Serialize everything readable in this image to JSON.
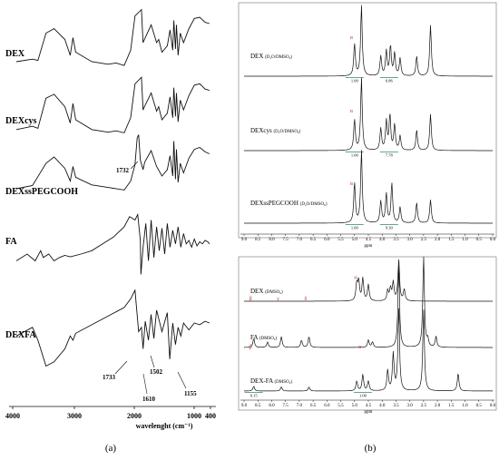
{
  "panels": {
    "a": "(a)",
    "b": "(b)"
  },
  "chart_data": [
    {
      "type": "line",
      "panel": "(a)",
      "xlabel": "wavelenght (cm⁻¹)",
      "xlim": [
        4000,
        400
      ],
      "x_ticks": [
        "4000",
        "3000",
        "2000",
        "1000",
        "400"
      ],
      "series": [
        {
          "name": "DEX",
          "x": [
            4000,
            3700,
            3600,
            3450,
            3300,
            3100,
            3000,
            2950,
            2900,
            2600,
            2300,
            2150,
            2000,
            1880,
            1800,
            1680,
            1650,
            1620,
            1500,
            1400,
            1360,
            1300,
            1200,
            1150,
            1100,
            1080,
            1050,
            1030,
            1000,
            960,
            900,
            800,
            700,
            600,
            500,
            420
          ],
          "y": [
            0.1,
            0.14,
            0.12,
            0.55,
            0.62,
            0.45,
            0.2,
            0.48,
            0.25,
            0.1,
            0.06,
            0.08,
            0.04,
            0.28,
            0.82,
            0.92,
            0.4,
            0.46,
            0.68,
            0.4,
            0.45,
            0.25,
            0.35,
            0.6,
            0.28,
            0.75,
            0.3,
            0.68,
            0.2,
            0.55,
            0.4,
            0.62,
            0.78,
            0.8,
            0.72,
            0.7
          ]
        },
        {
          "name": "DEXcys",
          "x": [
            4000,
            3700,
            3600,
            3450,
            3300,
            3100,
            3000,
            2950,
            2900,
            2600,
            2300,
            2150,
            2000,
            1880,
            1800,
            1680,
            1650,
            1620,
            1500,
            1400,
            1360,
            1300,
            1200,
            1150,
            1100,
            1080,
            1050,
            1030,
            1000,
            960,
            900,
            800,
            700,
            600,
            500,
            420
          ],
          "y": [
            0.1,
            0.15,
            0.12,
            0.58,
            0.64,
            0.45,
            0.2,
            0.5,
            0.25,
            0.1,
            0.06,
            0.08,
            0.05,
            0.28,
            0.8,
            0.9,
            0.4,
            0.46,
            0.66,
            0.38,
            0.45,
            0.25,
            0.35,
            0.6,
            0.28,
            0.74,
            0.3,
            0.66,
            0.22,
            0.55,
            0.4,
            0.62,
            0.78,
            0.8,
            0.72,
            0.7
          ]
        },
        {
          "name": "DEXssPEGCOOH",
          "x": [
            4000,
            3700,
            3450,
            3300,
            3100,
            3000,
            2950,
            2900,
            2600,
            2300,
            2000,
            1880,
            1800,
            1760,
            1732,
            1700,
            1650,
            1620,
            1500,
            1400,
            1300,
            1200,
            1150,
            1100,
            1080,
            1050,
            1030,
            1000,
            960,
            900,
            800,
            700,
            600,
            500,
            420
          ],
          "y": [
            0.1,
            0.15,
            0.5,
            0.6,
            0.42,
            0.22,
            0.45,
            0.28,
            0.16,
            0.12,
            0.08,
            0.22,
            0.48,
            0.9,
            0.95,
            0.55,
            0.4,
            0.52,
            0.7,
            0.45,
            0.3,
            0.4,
            0.62,
            0.3,
            0.85,
            0.25,
            0.72,
            0.2,
            0.5,
            0.35,
            0.58,
            0.72,
            0.75,
            0.68,
            0.65
          ]
        },
        {
          "name": "FA",
          "x": [
            4000,
            3800,
            3650,
            3550,
            3500,
            3400,
            3300,
            3200,
            3100,
            3000,
            2800,
            2600,
            2400,
            2200,
            2000,
            1900,
            1800,
            1750,
            1700,
            1690,
            1650,
            1600,
            1550,
            1500,
            1450,
            1400,
            1350,
            1300,
            1250,
            1200,
            1150,
            1100,
            1050,
            1000,
            950,
            900,
            850,
            800,
            750,
            700,
            650,
            600,
            550,
            500,
            450,
            420
          ],
          "y": [
            0.3,
            0.4,
            0.3,
            0.45,
            0.35,
            0.4,
            0.3,
            0.35,
            0.38,
            0.36,
            0.4,
            0.45,
            0.55,
            0.65,
            0.8,
            0.95,
            0.9,
            0.98,
            0.6,
            0.1,
            0.5,
            0.85,
            0.3,
            0.9,
            0.35,
            0.8,
            0.45,
            0.78,
            0.4,
            0.85,
            0.5,
            0.75,
            0.55,
            0.8,
            0.5,
            0.7,
            0.55,
            0.6,
            0.5,
            0.62,
            0.52,
            0.58,
            0.55,
            0.6,
            0.58,
            0.55
          ]
        },
        {
          "name": "DEXFA",
          "x": [
            4000,
            3700,
            3600,
            3450,
            3300,
            3100,
            3000,
            2950,
            2900,
            2600,
            2300,
            2000,
            1880,
            1800,
            1733,
            1680,
            1650,
            1610,
            1550,
            1502,
            1450,
            1400,
            1300,
            1200,
            1155,
            1100,
            1050,
            1000,
            950,
            900,
            800,
            700,
            600,
            500,
            420
          ],
          "y": [
            0.45,
            0.55,
            0.4,
            0.1,
            0.15,
            0.3,
            0.45,
            0.4,
            0.48,
            0.58,
            0.68,
            0.78,
            0.88,
            0.98,
            0.5,
            0.55,
            0.3,
            0.62,
            0.4,
            0.7,
            0.42,
            0.75,
            0.5,
            0.72,
            0.18,
            0.6,
            0.35,
            0.55,
            0.45,
            0.6,
            0.52,
            0.6,
            0.58,
            0.62,
            0.6
          ]
        }
      ],
      "annotations": [
        {
          "label": "1732",
          "x": 1732,
          "series": "DEXssPEGCOOH"
        },
        {
          "label": "1733",
          "x": 1733,
          "series": "DEXFA"
        },
        {
          "label": "1610",
          "x": 1610,
          "series": "DEXFA"
        },
        {
          "label": "1502",
          "x": 1502,
          "series": "DEXFA"
        },
        {
          "label": "1155",
          "x": 1155,
          "series": "DEXFA"
        }
      ],
      "legend": "inline-left"
    },
    {
      "type": "line",
      "panel": "(b) top",
      "xlabel": "ppm",
      "xlim": [
        9.0,
        0.0
      ],
      "x_ticks": [
        "9.0",
        "8.5",
        "8.0",
        "7.5",
        "7.0",
        "6.5",
        "6.0",
        "5.5",
        "5.0",
        "4.5",
        "4.0",
        "3.5",
        "3.0",
        "2.5",
        "2.0",
        "1.5",
        "1.0",
        "0.5",
        "0.0"
      ],
      "series": [
        {
          "name": "DEX",
          "solvent": "(D₂O/DMSO₆)",
          "peaks": [
            [
              5.0,
              0.45
            ],
            [
              4.75,
              1.0
            ],
            [
              4.05,
              0.28
            ],
            [
              3.85,
              0.35
            ],
            [
              3.7,
              0.42
            ],
            [
              3.55,
              0.32
            ],
            [
              3.35,
              0.25
            ],
            [
              2.75,
              0.28
            ],
            [
              2.25,
              0.72
            ]
          ],
          "marker": {
            "label": "α",
            "ppm": 5.0
          },
          "integrals": [
            {
              "ppm": 5.0,
              "value": "1.00"
            },
            {
              "ppm": 3.75,
              "value": "6.86"
            }
          ]
        },
        {
          "name": "DEXcys",
          "solvent": "(D₂O/DMSO₆)",
          "peaks": [
            [
              5.0,
              0.42
            ],
            [
              4.75,
              1.0
            ],
            [
              4.05,
              0.3
            ],
            [
              3.85,
              0.4
            ],
            [
              3.72,
              0.48
            ],
            [
              3.55,
              0.35
            ],
            [
              3.35,
              0.2
            ],
            [
              2.75,
              0.28
            ],
            [
              2.25,
              0.5
            ]
          ],
          "marker": {
            "label": "α",
            "ppm": 5.0
          },
          "integrals": [
            {
              "ppm": 5.0,
              "value": "1.00"
            },
            {
              "ppm": 3.75,
              "value": "7.78"
            }
          ]
        },
        {
          "name": "DEXssPEGCOOH",
          "solvent": "(D₂O/DMSO₆)",
          "peaks": [
            [
              5.0,
              0.55
            ],
            [
              4.75,
              1.0
            ],
            [
              4.05,
              0.3
            ],
            [
              3.85,
              0.4
            ],
            [
              3.65,
              0.55
            ],
            [
              3.35,
              0.22
            ],
            [
              2.75,
              0.28
            ],
            [
              2.25,
              0.32
            ]
          ],
          "marker": {
            "label": "α",
            "ppm": 5.0
          },
          "integrals": [
            {
              "ppm": 5.0,
              "value": "1.00"
            },
            {
              "ppm": 3.75,
              "value": "9.30"
            }
          ]
        }
      ]
    },
    {
      "type": "line",
      "panel": "(b) bottom",
      "xlabel": "ppm",
      "xlim": [
        9.0,
        0.0
      ],
      "x_ticks": [
        "9.0",
        "8.5",
        "8.0",
        "7.5",
        "7.0",
        "6.5",
        "6.0",
        "5.5",
        "5.0",
        "4.5",
        "4.0",
        "3.5",
        "3.0",
        "2.5",
        "2.0",
        "1.5",
        "1.0",
        "0.5",
        "0.0"
      ],
      "series": [
        {
          "name": "DEX",
          "solvent": "(DMSO₆)",
          "peaks": [
            [
              4.92,
              0.42
            ],
            [
              4.85,
              0.48
            ],
            [
              4.7,
              0.55
            ],
            [
              4.5,
              0.4
            ],
            [
              3.8,
              0.25
            ],
            [
              3.7,
              0.3
            ],
            [
              3.6,
              0.45
            ],
            [
              3.4,
              1.0
            ],
            [
              3.2,
              0.28
            ]
          ],
          "markers": [
            {
              "label": "α",
              "ppm": 4.85
            }
          ]
        },
        {
          "name": "FA",
          "solvent": "(DMSO₆)",
          "peaks": [
            [
              8.65,
              0.1
            ],
            [
              8.15,
              0.06
            ],
            [
              7.65,
              0.12
            ],
            [
              6.92,
              0.08
            ],
            [
              6.65,
              0.12
            ],
            [
              4.5,
              0.08
            ],
            [
              4.35,
              0.06
            ],
            [
              3.4,
              0.9
            ],
            [
              2.5,
              1.0
            ],
            [
              2.35,
              0.08
            ],
            [
              2.05,
              0.12
            ]
          ],
          "markers": [
            {
              "label": "β",
              "ppm": 8.65
            },
            {
              "label": "γ",
              "ppm": 7.65
            },
            {
              "label": "δ",
              "ppm": 6.65
            }
          ]
        },
        {
          "name": "DEX-FA",
          "solvent": "(DMSO₆)",
          "peaks": [
            [
              8.65,
              0.06
            ],
            [
              7.65,
              0.05
            ],
            [
              6.65,
              0.05
            ],
            [
              4.92,
              0.12
            ],
            [
              4.7,
              0.2
            ],
            [
              4.5,
              0.12
            ],
            [
              3.8,
              0.25
            ],
            [
              3.6,
              0.45
            ],
            [
              3.4,
              1.0
            ],
            [
              2.5,
              1.0
            ],
            [
              1.25,
              0.22
            ]
          ],
          "markers": [
            {
              "label": "α",
              "ppm": 4.7
            },
            {
              "label": "β",
              "ppm": 8.65
            }
          ],
          "integrals": [
            {
              "ppm": 8.65,
              "value": "0.15"
            },
            {
              "ppm": 4.7,
              "value": "1.00"
            }
          ]
        }
      ]
    }
  ]
}
